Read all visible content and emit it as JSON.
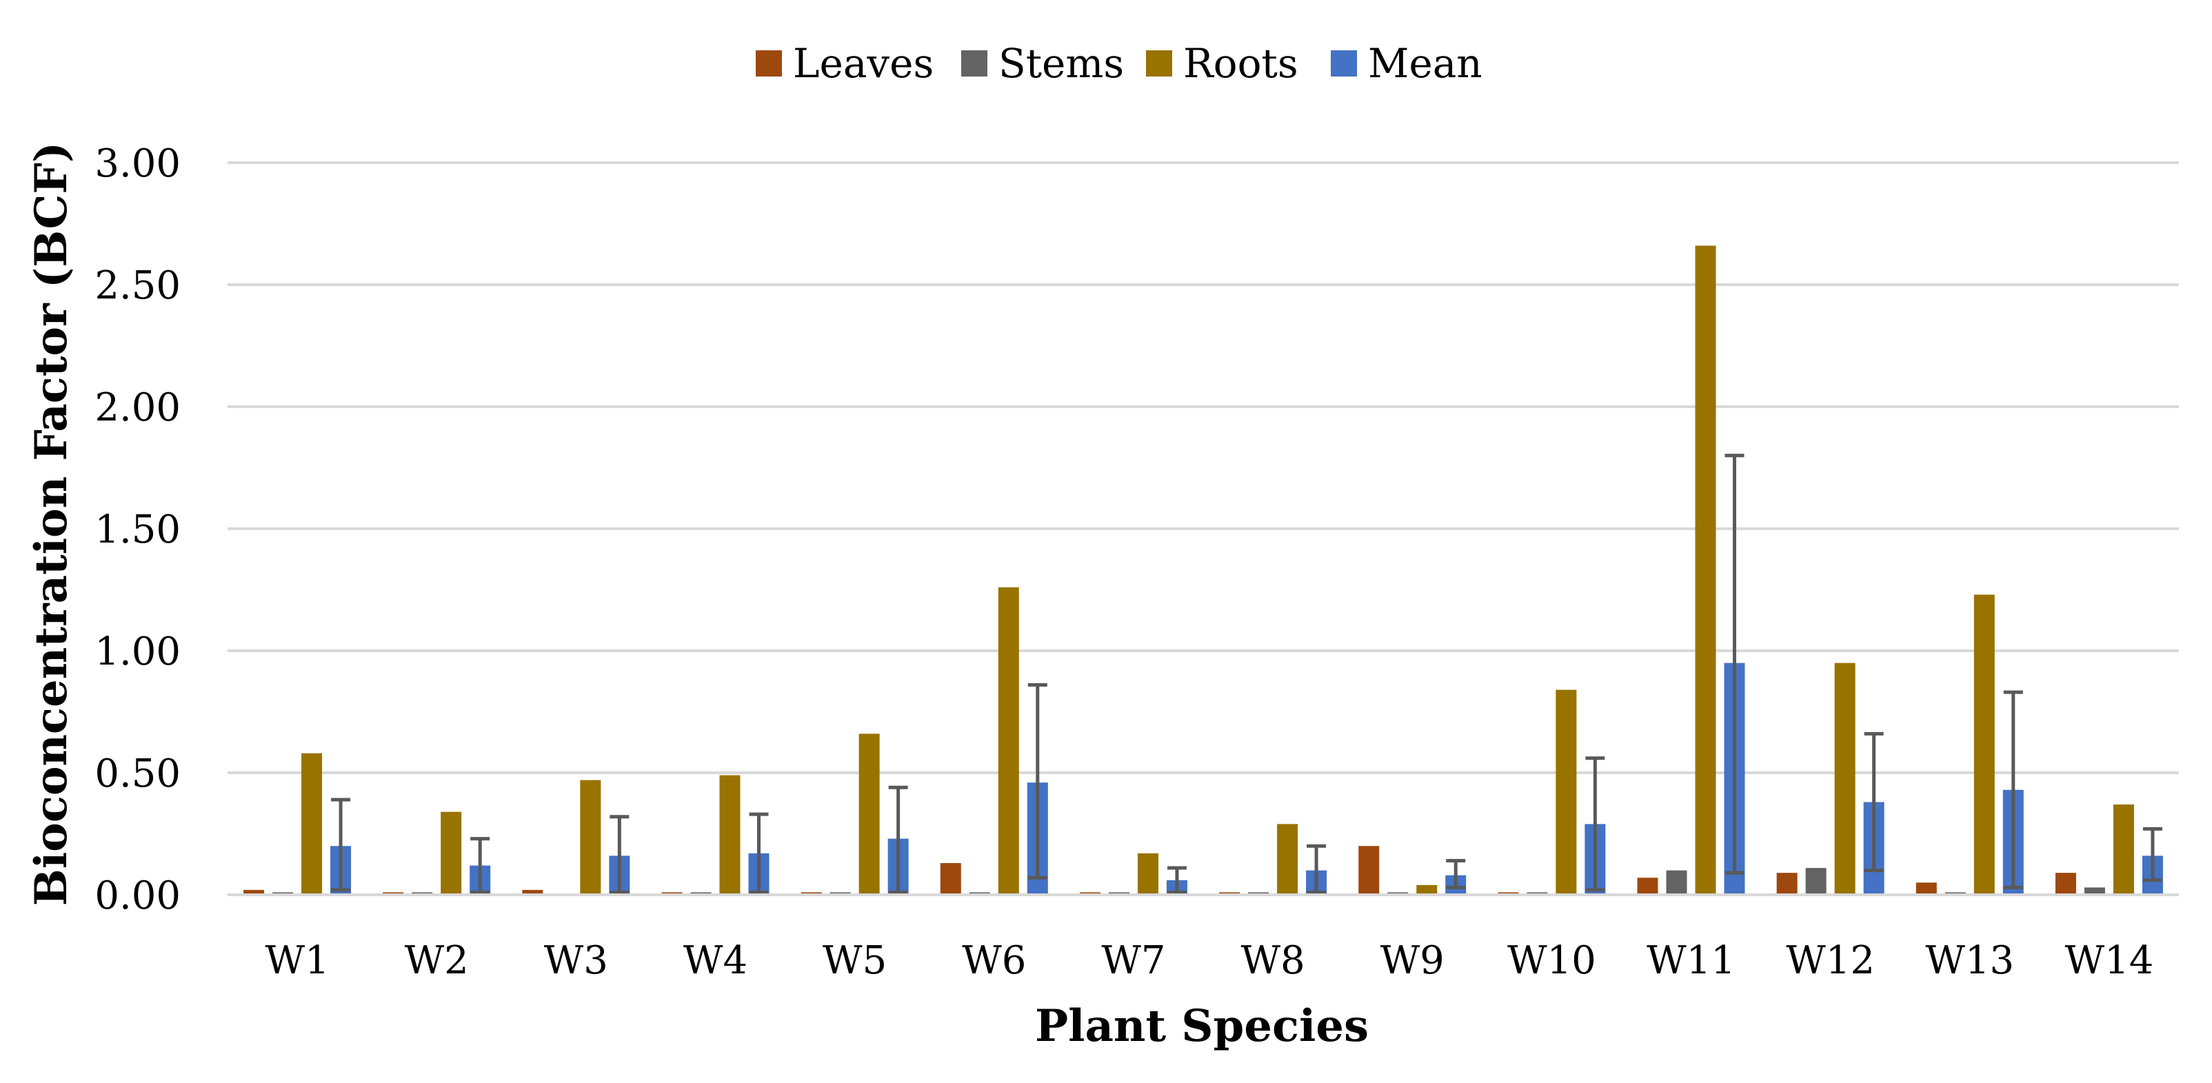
{
  "chart_data": {
    "type": "bar",
    "title": "",
    "xlabel": "Plant Species",
    "ylabel": "Bioconcentration Factor (BCF)",
    "ylim": [
      0,
      3
    ],
    "ytick_labels": [
      "0.00",
      "0.50",
      "1.00",
      "1.50",
      "2.00",
      "2.50",
      "3.00"
    ],
    "grid": true,
    "legend_position": "top-center",
    "categories": [
      "W1",
      "W2",
      "W3",
      "W4",
      "W5",
      "W6",
      "W7",
      "W8",
      "W9",
      "W10",
      "W11",
      "W12",
      "W13",
      "W14"
    ],
    "series": [
      {
        "name": "Leaves",
        "color": "#9E480E",
        "values": [
          0.02,
          0.01,
          0.02,
          0.01,
          0.01,
          0.13,
          0.01,
          0.01,
          0.2,
          0.01,
          0.07,
          0.09,
          0.05,
          0.09
        ]
      },
      {
        "name": "Stems",
        "color": "#636363",
        "values": [
          0.01,
          0.01,
          0.0,
          0.01,
          0.01,
          0.01,
          0.01,
          0.01,
          0.01,
          0.01,
          0.1,
          0.11,
          0.01,
          0.03
        ]
      },
      {
        "name": "Roots",
        "color": "#997300",
        "values": [
          0.58,
          0.34,
          0.47,
          0.49,
          0.66,
          1.26,
          0.17,
          0.29,
          0.04,
          0.84,
          2.66,
          0.95,
          1.23,
          0.37
        ]
      },
      {
        "name": "Mean",
        "color": "#4472C4",
        "values": [
          0.2,
          0.12,
          0.16,
          0.17,
          0.23,
          0.46,
          0.06,
          0.1,
          0.08,
          0.29,
          0.95,
          0.38,
          0.43,
          0.16
        ],
        "error_low": [
          0.02,
          0.01,
          0.01,
          0.01,
          0.01,
          0.07,
          0.01,
          0.01,
          0.03,
          0.02,
          0.09,
          0.1,
          0.03,
          0.06
        ],
        "error_high": [
          0.39,
          0.23,
          0.32,
          0.33,
          0.44,
          0.86,
          0.11,
          0.2,
          0.14,
          0.56,
          1.8,
          0.66,
          0.83,
          0.27
        ]
      }
    ]
  }
}
